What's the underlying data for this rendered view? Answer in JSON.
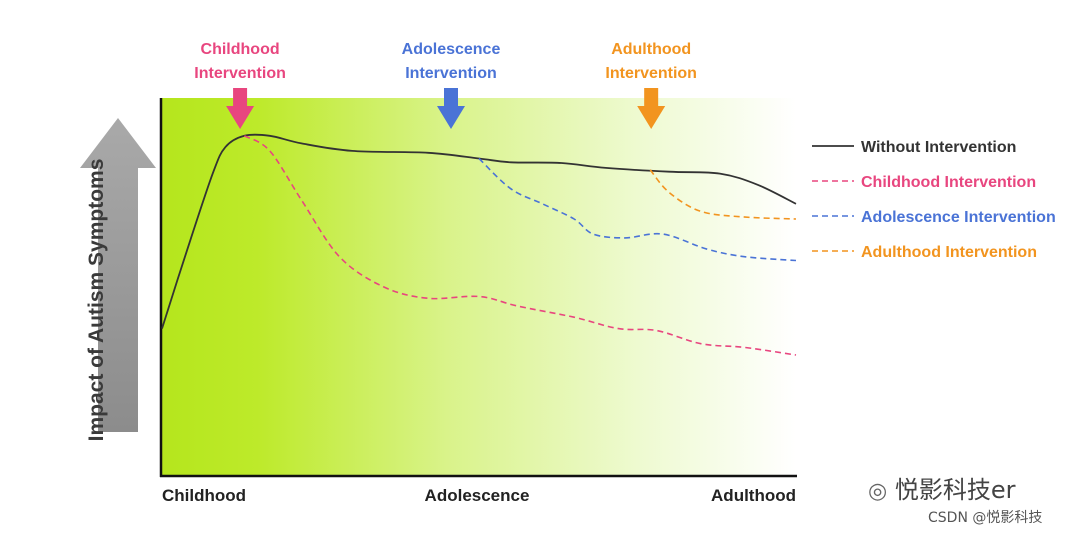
{
  "chart_data": {
    "type": "line",
    "ylabel": "Impact of Autism Symptoms",
    "x_categories": [
      {
        "label": "Childhood",
        "x": 0
      },
      {
        "label": "Adolescence",
        "x": 0.5
      },
      {
        "label": "Adulthood",
        "x": 1
      }
    ],
    "x_range": [
      0,
      1
    ],
    "y_range": [
      0,
      1
    ],
    "interventions": [
      {
        "label_line1": "Childhood",
        "label_line2": "Intervention",
        "x": 0.12,
        "color": "#e8467f"
      },
      {
        "label_line1": "Adolescence",
        "label_line2": "Intervention",
        "x": 0.5,
        "color": "#4a73d6"
      },
      {
        "label_line1": "Adulthood",
        "label_line2": "Intervention",
        "x": 0.77,
        "color": "#f2941f"
      }
    ],
    "series": [
      {
        "name": "Without Intervention",
        "color": "#333333",
        "dash": false,
        "points": [
          [
            0,
            0.39
          ],
          [
            0.04,
            0.6
          ],
          [
            0.08,
            0.8
          ],
          [
            0.1,
            0.87
          ],
          [
            0.13,
            0.9
          ],
          [
            0.17,
            0.9
          ],
          [
            0.22,
            0.88
          ],
          [
            0.3,
            0.86
          ],
          [
            0.42,
            0.855
          ],
          [
            0.5,
            0.84
          ],
          [
            0.55,
            0.83
          ],
          [
            0.63,
            0.828
          ],
          [
            0.7,
            0.815
          ],
          [
            0.8,
            0.805
          ],
          [
            0.88,
            0.8
          ],
          [
            0.94,
            0.77
          ],
          [
            1,
            0.72
          ]
        ]
      },
      {
        "name": "Childhood Intervention",
        "color": "#e8467f",
        "dash": true,
        "points": [
          [
            0.13,
            0.9
          ],
          [
            0.17,
            0.86
          ],
          [
            0.22,
            0.73
          ],
          [
            0.28,
            0.58
          ],
          [
            0.35,
            0.5
          ],
          [
            0.42,
            0.47
          ],
          [
            0.5,
            0.475
          ],
          [
            0.56,
            0.45
          ],
          [
            0.65,
            0.42
          ],
          [
            0.72,
            0.39
          ],
          [
            0.78,
            0.385
          ],
          [
            0.85,
            0.35
          ],
          [
            0.92,
            0.34
          ],
          [
            1,
            0.32
          ]
        ]
      },
      {
        "name": "Adolescence Intervention",
        "color": "#4a73d6",
        "dash": true,
        "points": [
          [
            0.5,
            0.84
          ],
          [
            0.55,
            0.76
          ],
          [
            0.6,
            0.72
          ],
          [
            0.65,
            0.68
          ],
          [
            0.68,
            0.64
          ],
          [
            0.73,
            0.63
          ],
          [
            0.79,
            0.64
          ],
          [
            0.86,
            0.6
          ],
          [
            0.92,
            0.58
          ],
          [
            1,
            0.57
          ]
        ]
      },
      {
        "name": "Adulthood Intervention",
        "color": "#f2941f",
        "dash": true,
        "points": [
          [
            0.77,
            0.81
          ],
          [
            0.8,
            0.75
          ],
          [
            0.85,
            0.7
          ],
          [
            0.92,
            0.685
          ],
          [
            1,
            0.68
          ]
        ]
      }
    ]
  },
  "watermark": {
    "brand": "悦影科技er",
    "credit": "CSDN @悦影科技"
  }
}
